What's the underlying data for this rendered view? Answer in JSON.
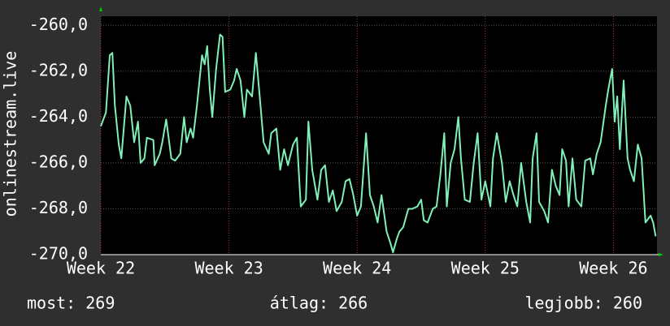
{
  "chart_data": {
    "type": "line",
    "y_label": "onlinestream.live",
    "x": [
      22.0,
      22.04,
      22.07,
      22.09,
      22.11,
      22.14,
      22.16,
      22.2,
      22.23,
      22.26,
      22.29,
      22.31,
      22.34,
      22.36,
      22.41,
      22.42,
      22.46,
      22.48,
      22.51,
      22.55,
      22.58,
      22.62,
      22.65,
      22.67,
      22.7,
      22.72,
      22.75,
      22.79,
      22.81,
      22.83,
      22.85,
      22.87,
      22.9,
      22.93,
      22.95,
      22.97,
      23.01,
      23.04,
      23.06,
      23.09,
      23.12,
      23.14,
      23.18,
      23.21,
      23.24,
      23.27,
      23.31,
      23.33,
      23.37,
      23.4,
      23.43,
      23.46,
      23.5,
      23.53,
      23.56,
      23.6,
      23.62,
      23.65,
      23.69,
      23.72,
      23.75,
      23.78,
      23.81,
      23.84,
      23.88,
      23.91,
      23.94,
      23.97,
      24.0,
      24.03,
      24.07,
      24.1,
      24.13,
      24.16,
      24.19,
      24.23,
      24.26,
      24.28,
      24.31,
      24.33,
      24.36,
      24.4,
      24.43,
      24.47,
      24.5,
      24.52,
      24.55,
      24.59,
      24.62,
      24.65,
      24.68,
      24.7,
      24.73,
      24.76,
      24.79,
      24.81,
      24.84,
      24.88,
      24.91,
      24.94,
      24.97,
      25.0,
      25.04,
      25.06,
      25.09,
      25.13,
      25.16,
      25.19,
      25.22,
      25.25,
      25.28,
      25.32,
      25.35,
      25.37,
      25.4,
      25.42,
      25.46,
      25.49,
      25.52,
      25.55,
      25.58,
      25.6,
      25.63,
      25.65,
      25.68,
      25.71,
      25.75,
      25.78,
      25.82,
      25.84,
      25.87,
      25.9,
      25.94,
      25.96,
      25.99,
      26.01,
      26.03,
      26.05,
      26.08,
      26.11,
      26.13,
      26.16,
      26.19,
      26.22,
      26.25,
      26.29,
      26.31,
      26.33
    ],
    "series": [
      {
        "color": "#80f0b8",
        "values": [
          -264.4,
          -263.8,
          -261.3,
          -261.2,
          -263.5,
          -265.2,
          -265.8,
          -263.1,
          -263.5,
          -265.1,
          -264.2,
          -266.0,
          -265.8,
          -264.9,
          -265.0,
          -266.1,
          -265.6,
          -265.1,
          -264.1,
          -265.8,
          -265.9,
          -265.6,
          -264.0,
          -265.1,
          -264.5,
          -264.9,
          -263.5,
          -261.3,
          -261.7,
          -260.9,
          -262.8,
          -264.0,
          -261.9,
          -260.4,
          -260.5,
          -262.9,
          -262.8,
          -262.4,
          -261.9,
          -262.4,
          -264.0,
          -262.8,
          -263.1,
          -261.2,
          -263.1,
          -265.1,
          -265.6,
          -264.7,
          -264.5,
          -266.3,
          -265.4,
          -266.1,
          -265.2,
          -264.9,
          -267.9,
          -267.6,
          -264.2,
          -266.3,
          -267.6,
          -266.3,
          -266.1,
          -267.7,
          -267.2,
          -268.1,
          -267.7,
          -266.8,
          -266.7,
          -267.4,
          -268.3,
          -267.9,
          -264.7,
          -267.4,
          -267.9,
          -268.6,
          -267.4,
          -269.0,
          -269.5,
          -269.9,
          -269.3,
          -269.0,
          -268.8,
          -268.0,
          -268.0,
          -267.9,
          -267.6,
          -268.5,
          -268.6,
          -268.0,
          -267.9,
          -266.5,
          -264.7,
          -267.9,
          -266.0,
          -265.4,
          -264.0,
          -265.8,
          -267.6,
          -267.7,
          -266.0,
          -264.7,
          -267.6,
          -266.8,
          -267.9,
          -265.8,
          -264.7,
          -266.0,
          -267.7,
          -266.8,
          -267.4,
          -267.9,
          -266.0,
          -267.7,
          -268.6,
          -265.8,
          -264.7,
          -267.7,
          -268.1,
          -268.6,
          -266.3,
          -267.0,
          -267.4,
          -265.4,
          -265.9,
          -267.9,
          -265.8,
          -267.6,
          -267.9,
          -265.9,
          -265.8,
          -266.5,
          -265.6,
          -265.1,
          -263.5,
          -262.8,
          -261.9,
          -264.2,
          -263.1,
          -265.4,
          -262.4,
          -265.8,
          -266.3,
          -266.8,
          -265.2,
          -265.8,
          -268.6,
          -268.3,
          -268.6,
          -269.2
        ]
      }
    ],
    "xlim": [
      22,
      26.34
    ],
    "ylim": [
      -270,
      -259.6
    ],
    "xticks": [
      {
        "value": 22,
        "label": "Week 22"
      },
      {
        "value": 23,
        "label": "Week 23"
      },
      {
        "value": 24,
        "label": "Week 24"
      },
      {
        "value": 25,
        "label": "Week 25"
      },
      {
        "value": 26,
        "label": "Week 26"
      }
    ],
    "yticks": [
      {
        "value": -270,
        "label": "-270,0"
      },
      {
        "value": -268,
        "label": "-268,0"
      },
      {
        "value": -266,
        "label": "-266,0"
      },
      {
        "value": -264,
        "label": "-264,0"
      },
      {
        "value": -262,
        "label": "-262,0"
      },
      {
        "value": -260,
        "label": "-260,0"
      }
    ],
    "grid": true,
    "stats": [
      "most: 269",
      "átlag: 266",
      "legjobb: 260"
    ]
  }
}
